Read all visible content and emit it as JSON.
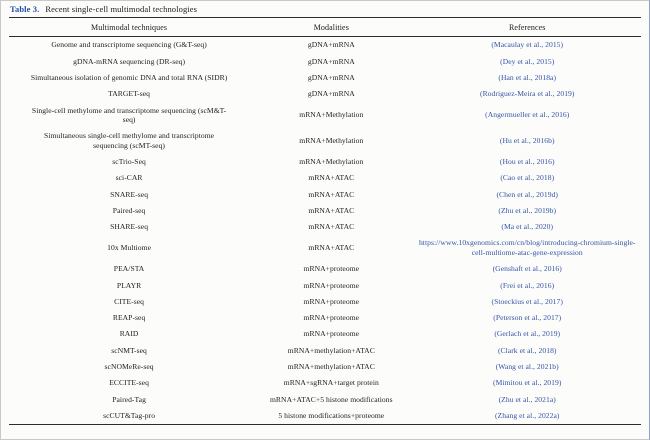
{
  "caption": {
    "label": "Table 3.",
    "text": "Recent single-cell multimodal technologies"
  },
  "table": {
    "columns": [
      "Multimodal techniques",
      "Modalities",
      "References"
    ],
    "rows": [
      {
        "technique": "Genome and transcriptome sequencing (G&T-seq)",
        "modalities": "gDNA+mRNA",
        "reference": "(Macaulay et al., 2015)"
      },
      {
        "technique": "gDNA-mRNA sequencing (DR-seq)",
        "modalities": "gDNA+mRNA",
        "reference": "(Dey et al., 2015)"
      },
      {
        "technique": "Simultaneous isolation of genomic DNA and total RNA (SIDR)",
        "modalities": "gDNA+mRNA",
        "reference": "(Han et al., 2018a)"
      },
      {
        "technique": "TARGET-seq",
        "modalities": "gDNA+mRNA",
        "reference": "(Rodriguez-Meira et al., 2019)"
      },
      {
        "technique": "Single-cell methylome and transcriptome sequencing (scM&T-seq)",
        "modalities": "mRNA+Methylation",
        "reference": "(Angermueller et al., 2016)"
      },
      {
        "technique": "Simultaneous single-cell methylome and transcriptome sequencing (scMT-seq)",
        "modalities": "mRNA+Methylation",
        "reference": "(Hu et al., 2016b)"
      },
      {
        "technique": "scTrio-Seq",
        "modalities": "mRNA+Methylation",
        "reference": "(Hou et al., 2016)"
      },
      {
        "technique": "sci-CAR",
        "modalities": "mRNA+ATAC",
        "reference": "(Cao et al., 2018)"
      },
      {
        "technique": "SNARE-seq",
        "modalities": "mRNA+ATAC",
        "reference": "(Chen et al., 2019d)"
      },
      {
        "technique": "Paired-seq",
        "modalities": "mRNA+ATAC",
        "reference": "(Zhu et al., 2019b)"
      },
      {
        "technique": "SHARE-seq",
        "modalities": "mRNA+ATAC",
        "reference": "(Ma et al., 2020)"
      },
      {
        "technique": "10x Multiome",
        "modalities": "mRNA+ATAC",
        "reference": "https://www.10xgenomics.com/cn/blog/introducing-chromium-single-cell-multiome-atac-gene-expression"
      },
      {
        "technique": "PEA/STA",
        "modalities": "mRNA+proteome",
        "reference": "(Genshaft et al., 2016)"
      },
      {
        "technique": "PLAYR",
        "modalities": "mRNA+proteome",
        "reference": "(Frei et al., 2016)"
      },
      {
        "technique": "CITE-seq",
        "modalities": "mRNA+proteome",
        "reference": "(Stoeckius et al., 2017)"
      },
      {
        "technique": "REAP-seq",
        "modalities": "mRNA+proteome",
        "reference": "(Peterson et al., 2017)"
      },
      {
        "technique": "RAID",
        "modalities": "mRNA+proteome",
        "reference": "(Gerlach et al., 2019)"
      },
      {
        "technique": "scNMT-seq",
        "modalities": "mRNA+methylation+ATAC",
        "reference": "(Clark et al., 2018)"
      },
      {
        "technique": "scNOMeRe-seq",
        "modalities": "mRNA+methylation+ATAC",
        "reference": "(Wang et al., 2021b)"
      },
      {
        "technique": "ECCITE-seq",
        "modalities": "mRNA+sgRNA+target protein",
        "reference": "(Mimitou et al., 2019)"
      },
      {
        "technique": "Paired-Tag",
        "modalities": "mRNA+ATAC+5 histone modifications",
        "reference": "(Zhu et al., 2021a)"
      },
      {
        "technique": "scCUT&Tag-pro",
        "modalities": "5 histone modifications+proteome",
        "reference": "(Zhang et al., 2022a)"
      }
    ]
  },
  "colors": {
    "caption_label_blue": "#1f4fa6",
    "reference_link_blue": "#3353a4",
    "rule_color": "#2e2e2e",
    "body_text": "#1c1c1c",
    "page_background": "#fcfcfb"
  }
}
